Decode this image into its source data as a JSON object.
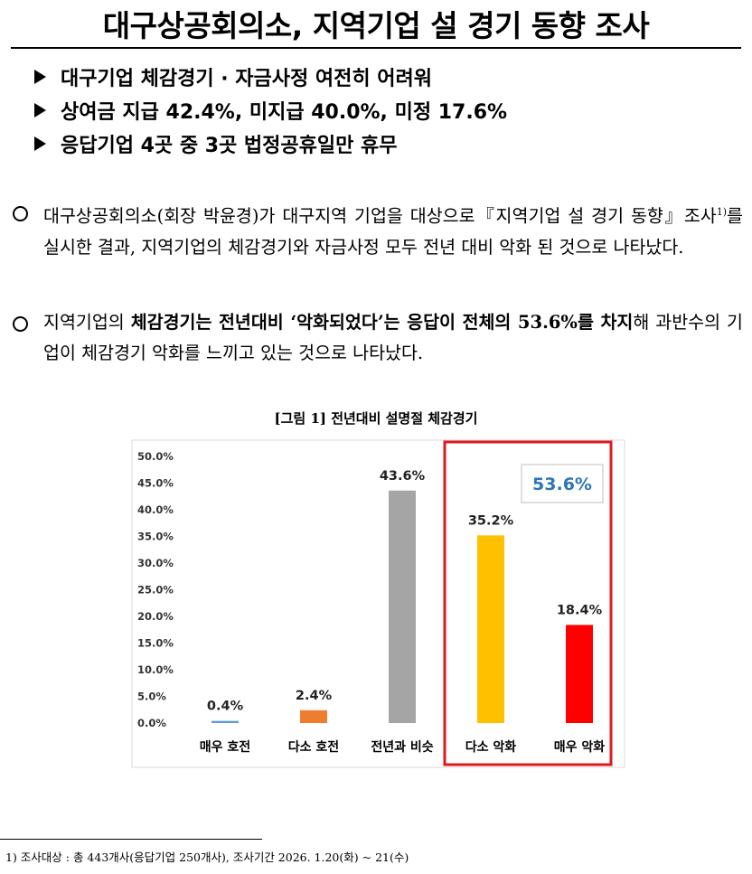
{
  "header": {
    "title": "대구상공회의소, 지역기업 설 경기 동향 조사"
  },
  "bullets": [
    "대구기업 체감경기 · 자금사정 여전히 어려워",
    "상여금 지급 42.4%, 미지급 40.0%, 미정 17.6%",
    "응답기업 4곳 중 3곳 법정공휴일만 휴무"
  ],
  "paragraph1": {
    "part1": "대구상공회의소(회장 박윤경)가 대구지역 기업을 대상으로『지역기업 설 경기 동향』조사",
    "footnote_ref": "1)",
    "part2": "를 실시한 결과, 지역기업의 체감경기와 자금사정 모두 전년 대비 악화 된 것으로 나타났다."
  },
  "paragraph2": {
    "part1": "지역기업의 ",
    "bold1": "체감경기는 전년대비 ‘악화되었다’는 응답이 전체의 53.6%를 차지",
    "part2": "해 과반수의 기업이 체감경기 악화를 느끼고 있는 것으로 나타났다."
  },
  "figure": {
    "caption": "[그림 1] 전년대비 설명절 체감경기"
  },
  "chart_data": {
    "type": "bar",
    "categories": [
      "매우 호전",
      "다소 호전",
      "전년과 비슷",
      "다소 악화",
      "매우 악화"
    ],
    "values": [
      0.4,
      2.4,
      43.6,
      35.2,
      18.4
    ],
    "data_labels": [
      "0.4%",
      "2.4%",
      "43.6%",
      "35.2%",
      "18.4%"
    ],
    "colors": [
      "#5b9bd5",
      "#ed7d31",
      "#a5a5a5",
      "#ffc000",
      "#ff0000"
    ],
    "ylim": [
      0,
      50
    ],
    "yticks": [
      "0.0%",
      "5.0%",
      "10.0%",
      "15.0%",
      "20.0%",
      "25.0%",
      "30.0%",
      "35.0%",
      "40.0%",
      "45.0%",
      "50.0%"
    ],
    "highlight": {
      "categories": [
        "다소 악화",
        "매우 악화"
      ],
      "label": "53.6%",
      "border_color": "#e0191f",
      "label_color": "#2e75b6"
    },
    "grid": false
  },
  "footnote": {
    "text": "1) 조사대상 : 총 443개사(응답기업 250개사), 조사기간 2026. 1.20(화) ~ 21(수)"
  }
}
